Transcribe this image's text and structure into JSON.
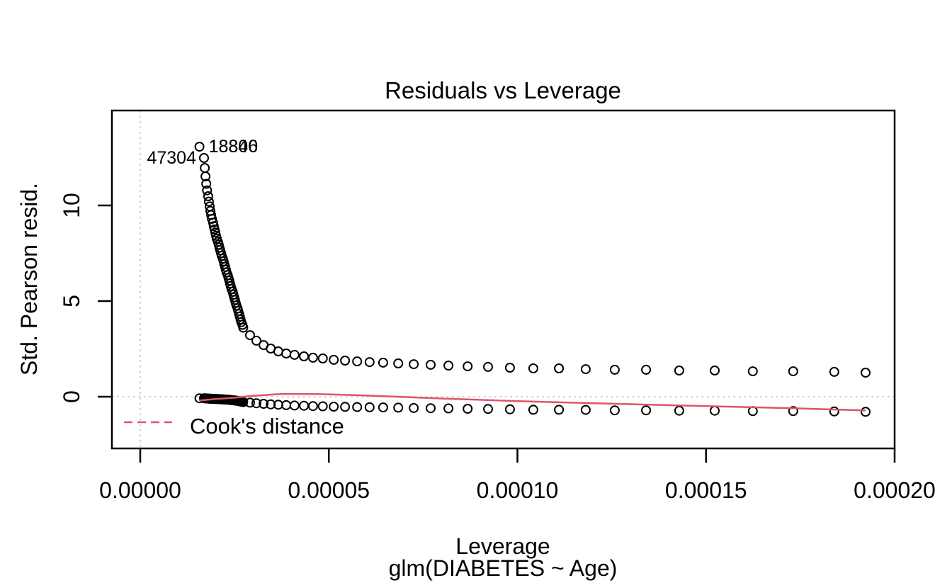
{
  "chart_data": {
    "type": "scatter",
    "title": "Residuals vs Leverage",
    "xlabel": "Leverage",
    "xlabel_sub": "glm(DIABETES ~ Age)",
    "ylabel": "Std. Pearson resid.",
    "xlim": [
      -7.5e-06,
      0.0002
    ],
    "ylim": [
      -2.7,
      15.0
    ],
    "grid": false,
    "colors": {
      "points": "#000000",
      "smooth_line": "#df536b",
      "reference_line": "#bdbdbd"
    },
    "x_ticks": [
      {
        "v": 0.0,
        "label": "0.00000"
      },
      {
        "v": 5e-05,
        "label": "0.00005"
      },
      {
        "v": 0.0001,
        "label": "0.00010"
      },
      {
        "v": 0.00015,
        "label": "0.00015"
      },
      {
        "v": 0.0002,
        "label": "0.00020"
      }
    ],
    "y_ticks": [
      {
        "v": 0,
        "label": "0"
      },
      {
        "v": 5,
        "label": "5"
      },
      {
        "v": 10,
        "label": "10"
      }
    ],
    "reference_lines": {
      "horizontal_at": 0,
      "vertical_at": 0
    },
    "leverage": [
      1.57e-05,
      1.69e-05,
      1.71e-05,
      1.73e-05,
      1.75e-05,
      1.77e-05,
      1.8e-05,
      1.82e-05,
      1.84e-05,
      1.86e-05,
      1.88e-05,
      1.9e-05,
      1.93e-05,
      1.95e-05,
      1.97e-05,
      1.99e-05,
      2.01e-05,
      2.03e-05,
      2.06e-05,
      2.08e-05,
      2.1e-05,
      2.12e-05,
      2.14e-05,
      2.16e-05,
      2.19e-05,
      2.21e-05,
      2.23e-05,
      2.25e-05,
      2.27e-05,
      2.29e-05,
      2.32e-05,
      2.34e-05,
      2.36e-05,
      2.38e-05,
      2.4e-05,
      2.42e-05,
      2.45e-05,
      2.47e-05,
      2.49e-05,
      2.51e-05,
      2.53e-05,
      2.55e-05,
      2.58e-05,
      2.6e-05,
      2.62e-05,
      2.64e-05,
      2.66e-05,
      2.68e-05,
      2.71e-05,
      2.73e-05,
      2.91e-05,
      3.08e-05,
      3.27e-05,
      3.46e-05,
      3.66e-05,
      3.87e-05,
      4.09e-05,
      4.34e-05,
      4.58e-05,
      4.84e-05,
      5.13e-05,
      5.43e-05,
      5.75e-05,
      6.08e-05,
      6.44e-05,
      6.84e-05,
      7.25e-05,
      7.7e-05,
      8.17e-05,
      8.68e-05,
      9.22e-05,
      9.8e-05,
      0.0001042,
      0.000111,
      0.0001181,
      0.0001258,
      0.0001341,
      0.0001429,
      0.0001523,
      0.0001624,
      0.0001731,
      0.000184,
      0.0001923
    ],
    "series": [
      {
        "name": "positive residual branch",
        "marker": "open-circle",
        "residuals": [
          13.07,
          12.48,
          11.96,
          11.52,
          11.13,
          10.79,
          10.48,
          10.2,
          9.95,
          9.71,
          9.5,
          9.3,
          9.1,
          8.92,
          8.75,
          8.58,
          8.42,
          8.26,
          8.1,
          7.95,
          7.8,
          7.66,
          7.51,
          7.37,
          7.22,
          7.08,
          6.93,
          6.79,
          6.64,
          6.5,
          6.36,
          6.21,
          6.07,
          5.92,
          5.78,
          5.63,
          5.49,
          5.34,
          5.2,
          5.06,
          4.91,
          4.77,
          4.62,
          4.48,
          4.33,
          4.19,
          4.04,
          3.9,
          3.76,
          3.61,
          3.22,
          2.93,
          2.7,
          2.52,
          2.37,
          2.26,
          2.19,
          2.11,
          2.04,
          2.0,
          1.93,
          1.89,
          1.85,
          1.81,
          1.78,
          1.74,
          1.7,
          1.67,
          1.63,
          1.59,
          1.56,
          1.52,
          1.48,
          1.48,
          1.44,
          1.41,
          1.41,
          1.37,
          1.37,
          1.33,
          1.33,
          1.3,
          1.26
        ]
      },
      {
        "name": "negative residual branch",
        "marker": "open-circle",
        "residuals": [
          -0.08,
          -0.08,
          -0.08,
          -0.09,
          -0.09,
          -0.09,
          -0.1,
          -0.1,
          -0.1,
          -0.1,
          -0.11,
          -0.11,
          -0.11,
          -0.11,
          -0.11,
          -0.12,
          -0.12,
          -0.12,
          -0.12,
          -0.13,
          -0.13,
          -0.13,
          -0.13,
          -0.14,
          -0.14,
          -0.14,
          -0.14,
          -0.15,
          -0.15,
          -0.15,
          -0.16,
          -0.16,
          -0.16,
          -0.17,
          -0.17,
          -0.18,
          -0.18,
          -0.19,
          -0.19,
          -0.2,
          -0.2,
          -0.21,
          -0.22,
          -0.22,
          -0.23,
          -0.24,
          -0.25,
          -0.26,
          -0.27,
          -0.28,
          -0.31,
          -0.34,
          -0.37,
          -0.4,
          -0.42,
          -0.44,
          -0.46,
          -0.47,
          -0.49,
          -0.5,
          -0.52,
          -0.53,
          -0.54,
          -0.55,
          -0.56,
          -0.57,
          -0.59,
          -0.6,
          -0.61,
          -0.63,
          -0.64,
          -0.66,
          -0.68,
          -0.68,
          -0.69,
          -0.71,
          -0.71,
          -0.73,
          -0.73,
          -0.75,
          -0.75,
          -0.77,
          -0.79
        ]
      }
    ],
    "smooth_line": {
      "name": "residual smoother",
      "style": "solid",
      "points": [
        [
          1.56e-05,
          -0.2
        ],
        [
          2e-05,
          -0.12
        ],
        [
          2.5e-05,
          -0.05
        ],
        [
          3e-05,
          0.05
        ],
        [
          3.8e-05,
          0.15
        ],
        [
          4.7e-05,
          0.14
        ],
        [
          5.7e-05,
          0.08
        ],
        [
          6.8e-05,
          0.0
        ],
        [
          8.1e-05,
          -0.1
        ],
        [
          9.8e-05,
          -0.22
        ],
        [
          0.000118,
          -0.33
        ],
        [
          0.000134,
          -0.41
        ],
        [
          0.000152,
          -0.5
        ],
        [
          0.000173,
          -0.6
        ],
        [
          0.0001923,
          -0.72
        ]
      ]
    },
    "legend": {
      "label": "Cook's distance",
      "style": "dashed"
    },
    "point_labels": [
      {
        "text": "18840",
        "x": 1.57e-05,
        "y": 13.07,
        "side": "right"
      },
      {
        "text": "18806",
        "x": 1.57e-05,
        "y": 13.07,
        "side": "right"
      },
      {
        "text": "47304",
        "x": 1.69e-05,
        "y": 12.48,
        "side": "left"
      }
    ]
  }
}
